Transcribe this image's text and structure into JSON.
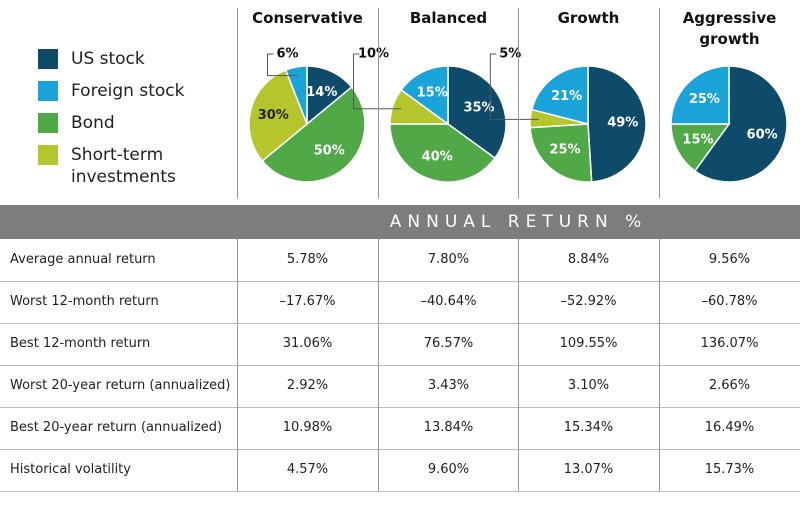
{
  "legend": [
    {
      "name": "US stock",
      "color": "#0e4a69"
    },
    {
      "name": "Foreign stock",
      "color": "#1aa3d8"
    },
    {
      "name": "Bond",
      "color": "#51a846"
    },
    {
      "name": "Short-term investments",
      "color": "#b5c62c"
    }
  ],
  "chart_data": [
    {
      "type": "pie",
      "title": "Conservative",
      "values": [
        14,
        6,
        50,
        30
      ],
      "value_labels": [
        "14%",
        "6%",
        "50%",
        "30%"
      ]
    },
    {
      "type": "pie",
      "title": "Balanced",
      "values": [
        35,
        15,
        40,
        10
      ],
      "value_labels": [
        "35%",
        "15%",
        "40%",
        "10%"
      ]
    },
    {
      "type": "pie",
      "title": "Growth",
      "values": [
        49,
        21,
        25,
        5
      ],
      "value_labels": [
        "49%",
        "21%",
        "25%",
        "5%"
      ]
    },
    {
      "type": "pie",
      "title": "Aggressive growth",
      "values": [
        60,
        25,
        15,
        null
      ],
      "value_labels": [
        "60%",
        "25%",
        "15%",
        null
      ]
    }
  ],
  "table": {
    "header": "ANNUAL RETURN %",
    "rows": [
      [
        "Average annual return",
        "5.78%",
        "7.80%",
        "8.84%",
        "9.56%"
      ],
      [
        "Worst 12-month return",
        "–17.67%",
        "–40.64%",
        "–52.92%",
        "–60.78%"
      ],
      [
        "Best 12-month return",
        "31.06%",
        "76.57%",
        "109.55%",
        "136.07%"
      ],
      [
        "Worst 20-year return (annualized)",
        "2.92%",
        "3.43%",
        "3.10%",
        "2.66%"
      ],
      [
        "Best 20-year return (annualized)",
        "10.98%",
        "13.84%",
        "15.34%",
        "16.49%"
      ],
      [
        "Historical volatility",
        "4.57%",
        "9.60%",
        "13.07%",
        "15.73%"
      ]
    ]
  }
}
